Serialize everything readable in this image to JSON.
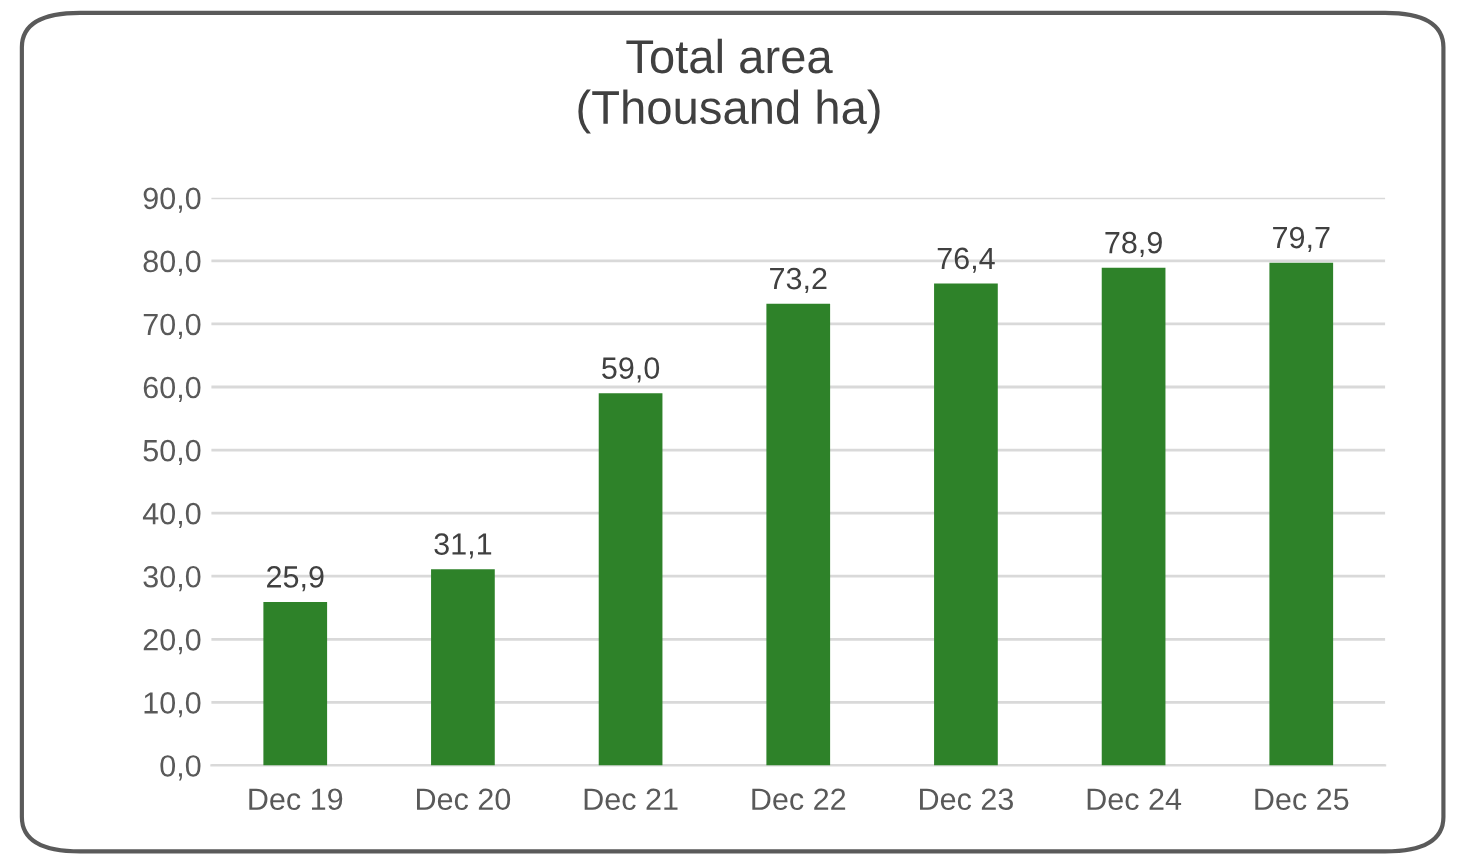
{
  "chart_data": {
    "type": "bar",
    "title": "Total area\n(Thousand ha)",
    "categories": [
      "Dec 19",
      "Dec 20",
      "Dec 21",
      "Dec 22",
      "Dec 23",
      "Dec 24",
      "Dec 25"
    ],
    "values": [
      25.9,
      31.1,
      59.0,
      73.2,
      76.4,
      78.9,
      79.7
    ],
    "value_labels": [
      "25,9",
      "31,1",
      "59,0",
      "73,2",
      "76,4",
      "78,9",
      "79,7"
    ],
    "color": "#2e8229",
    "ylim": [
      0,
      90
    ],
    "yticks": [
      {
        "value": 0,
        "label": "0,0"
      },
      {
        "value": 10,
        "label": "10,0"
      },
      {
        "value": 20,
        "label": "20,0"
      },
      {
        "value": 30,
        "label": "30,0"
      },
      {
        "value": 40,
        "label": "40,0"
      },
      {
        "value": 50,
        "label": "50,0"
      },
      {
        "value": 60,
        "label": "60,0"
      },
      {
        "value": 70,
        "label": "70,0"
      },
      {
        "value": 80,
        "label": "80,0"
      },
      {
        "value": 90,
        "label": "90,0"
      }
    ],
    "grid": "y",
    "legend": false
  }
}
